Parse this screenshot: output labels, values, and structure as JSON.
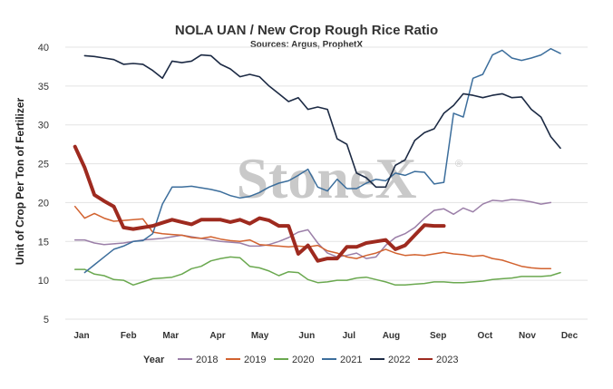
{
  "chart_data": {
    "type": "line",
    "title": "NOLA UAN / New Crop Rough Rice Ratio",
    "subtitle": "Sources: Argus, ProphetX",
    "ylabel": "Unit of Crop Per Ton of Fertilizer",
    "xlabel": "",
    "ylim": [
      5,
      40
    ],
    "yticks": [
      "5",
      "10",
      "15",
      "20",
      "25",
      "30",
      "35",
      "40"
    ],
    "xlim": [
      1,
      52
    ],
    "month_labels": [
      "Jan",
      "Feb",
      "Mar",
      "Apr",
      "May",
      "Jun",
      "Jul",
      "Aug",
      "Sep",
      "Oct",
      "Nov",
      "Dec"
    ],
    "month_weeks": [
      3,
      8,
      12.5,
      17.5,
      22,
      27,
      31.5,
      36,
      41,
      46,
      50.5,
      55
    ],
    "legend_title": "Year",
    "legend_position": "bottom",
    "watermark": "StoneX",
    "grid": "horizontal",
    "series": [
      {
        "name": "2018",
        "color": "#9b7fa8",
        "width": 1.5,
        "x": [
          2,
          3,
          4,
          5,
          6,
          7,
          8,
          9,
          10,
          11,
          12,
          13,
          14,
          15,
          16,
          17,
          18,
          19,
          20,
          21,
          22,
          23,
          24,
          25,
          26,
          27,
          28,
          29,
          30,
          31,
          32,
          33,
          34,
          35,
          36,
          37,
          38,
          39,
          40,
          41,
          42,
          43,
          44,
          45,
          46,
          47,
          48,
          49,
          50,
          51
        ],
        "y": [
          15.2,
          15.2,
          14.8,
          14.6,
          14.7,
          14.8,
          15.0,
          15.2,
          15.3,
          15.4,
          15.6,
          15.8,
          15.6,
          15.4,
          15.2,
          15.0,
          14.9,
          14.8,
          14.4,
          14.4,
          14.6,
          15.0,
          15.5,
          16.2,
          16.5,
          14.8,
          13.5,
          13.0,
          13.2,
          13.5,
          12.8,
          13.0,
          14.5,
          15.5,
          16.0,
          16.8,
          18.0,
          19.0,
          19.2,
          18.5,
          19.3,
          18.8,
          19.8,
          20.3,
          20.2,
          20.4,
          20.3,
          20.1,
          19.8,
          20.0
        ]
      },
      {
        "name": "2019",
        "color": "#d2622f",
        "width": 1.5,
        "x": [
          2,
          3,
          4,
          5,
          6,
          7,
          8,
          9,
          10,
          11,
          12,
          13,
          14,
          15,
          16,
          17,
          18,
          19,
          20,
          21,
          22,
          23,
          24,
          25,
          26,
          27,
          28,
          29,
          30,
          31,
          32,
          33,
          34,
          35,
          36,
          37,
          38,
          39,
          40,
          41,
          42,
          43,
          44,
          45,
          46,
          47,
          48,
          49,
          50,
          51
        ],
        "y": [
          19.5,
          18.0,
          18.6,
          18.0,
          17.6,
          17.7,
          17.8,
          17.9,
          16.2,
          16.0,
          15.9,
          15.8,
          15.5,
          15.4,
          15.6,
          15.3,
          15.1,
          15.0,
          15.2,
          14.6,
          14.5,
          14.4,
          14.3,
          14.4,
          14.3,
          14.5,
          13.8,
          13.5,
          13.0,
          12.8,
          13.2,
          13.5,
          14.0,
          13.5,
          13.2,
          13.3,
          13.2,
          13.4,
          13.6,
          13.4,
          13.3,
          13.1,
          13.2,
          12.8,
          12.6,
          12.2,
          11.8,
          11.6,
          11.5,
          11.5
        ]
      },
      {
        "name": "2020",
        "color": "#6aa84f",
        "width": 1.5,
        "x": [
          2,
          3,
          4,
          5,
          6,
          7,
          8,
          9,
          10,
          11,
          12,
          13,
          14,
          15,
          16,
          17,
          18,
          19,
          20,
          21,
          22,
          23,
          24,
          25,
          26,
          27,
          28,
          29,
          30,
          31,
          32,
          33,
          34,
          35,
          36,
          37,
          38,
          39,
          40,
          41,
          42,
          43,
          44,
          45,
          46,
          47,
          48,
          49,
          50,
          51,
          52
        ],
        "y": [
          11.4,
          11.4,
          10.8,
          10.6,
          10.1,
          10.0,
          9.4,
          9.8,
          10.2,
          10.3,
          10.4,
          10.8,
          11.5,
          11.8,
          12.5,
          12.8,
          13.0,
          12.9,
          11.8,
          11.6,
          11.2,
          10.6,
          11.1,
          11.0,
          10.1,
          9.7,
          9.8,
          10.0,
          10.0,
          10.3,
          10.4,
          10.1,
          9.8,
          9.4,
          9.4,
          9.5,
          9.6,
          9.8,
          9.8,
          9.7,
          9.7,
          9.8,
          9.9,
          10.1,
          10.2,
          10.3,
          10.5,
          10.5,
          10.5,
          10.6,
          11.0
        ]
      },
      {
        "name": "2021",
        "color": "#3c6e9c",
        "width": 1.5,
        "x": [
          3,
          4,
          5,
          6,
          7,
          8,
          9,
          10,
          11,
          12,
          13,
          14,
          15,
          16,
          17,
          18,
          19,
          20,
          21,
          22,
          23,
          24,
          25,
          26,
          27,
          28,
          29,
          30,
          31,
          32,
          33,
          34,
          35,
          36,
          37,
          38,
          39,
          40,
          41,
          42,
          43,
          44,
          45,
          46,
          47,
          48,
          49,
          50,
          51,
          52
        ],
        "y": [
          11.0,
          12.0,
          13.0,
          14.0,
          14.4,
          15.0,
          15.1,
          16.0,
          19.8,
          22.0,
          22.0,
          22.1,
          21.9,
          21.7,
          21.4,
          20.9,
          20.6,
          20.8,
          21.3,
          22.0,
          22.5,
          22.8,
          23.5,
          24.3,
          22.0,
          21.5,
          23.0,
          21.8,
          21.8,
          22.5,
          23.0,
          22.8,
          23.8,
          23.5,
          24.0,
          23.9,
          22.4,
          22.6,
          31.5,
          31.0,
          36.0,
          36.5,
          39.0,
          39.6,
          38.6,
          38.3,
          38.6,
          39.0,
          39.8,
          39.2
        ]
      },
      {
        "name": "2022",
        "color": "#1c2a44",
        "width": 1.6,
        "x": [
          3,
          4,
          5,
          6,
          7,
          8,
          9,
          10,
          11,
          12,
          13,
          14,
          15,
          16,
          17,
          18,
          19,
          20,
          21,
          22,
          23,
          24,
          25,
          26,
          27,
          28,
          29,
          30,
          31,
          32,
          33,
          34,
          35,
          36,
          37,
          38,
          39,
          40,
          41,
          42,
          43,
          44,
          45,
          46,
          47,
          48,
          49,
          50,
          51,
          52
        ],
        "y": [
          38.9,
          38.8,
          38.6,
          38.4,
          37.8,
          37.9,
          37.8,
          37.0,
          36.0,
          38.2,
          38.0,
          38.2,
          39.0,
          38.9,
          37.8,
          37.2,
          36.2,
          36.5,
          36.2,
          35.0,
          34.0,
          33.0,
          33.5,
          32.0,
          32.3,
          32.0,
          28.2,
          27.5,
          23.8,
          23.2,
          22.0,
          22.0,
          24.8,
          25.5,
          28.0,
          29.0,
          29.5,
          31.5,
          32.5,
          34.0,
          33.8,
          33.5,
          33.8,
          34.0,
          33.5,
          33.6,
          32.0,
          31.0,
          28.5,
          27.0
        ]
      },
      {
        "name": "2023",
        "color": "#9e2a1f",
        "width": 4,
        "x": [
          2,
          3,
          4,
          5,
          6,
          7,
          8,
          9,
          10,
          11,
          12,
          13,
          14,
          15,
          16,
          17,
          18,
          19,
          20,
          21,
          22,
          23,
          24,
          25,
          26,
          27,
          28,
          29,
          30,
          31,
          32,
          33,
          34,
          35,
          36,
          37,
          38,
          39,
          40
        ],
        "y": [
          27.2,
          24.5,
          21.0,
          20.2,
          19.5,
          16.8,
          16.6,
          16.8,
          17.0,
          17.4,
          17.8,
          17.5,
          17.2,
          17.8,
          17.8,
          17.8,
          17.5,
          17.8,
          17.3,
          18.0,
          17.7,
          17.0,
          17.0,
          13.4,
          14.5,
          12.5,
          12.8,
          12.8,
          14.3,
          14.3,
          14.8,
          15.0,
          15.2,
          14.0,
          14.5,
          15.8,
          17.1,
          17.0,
          17.0
        ]
      }
    ]
  }
}
